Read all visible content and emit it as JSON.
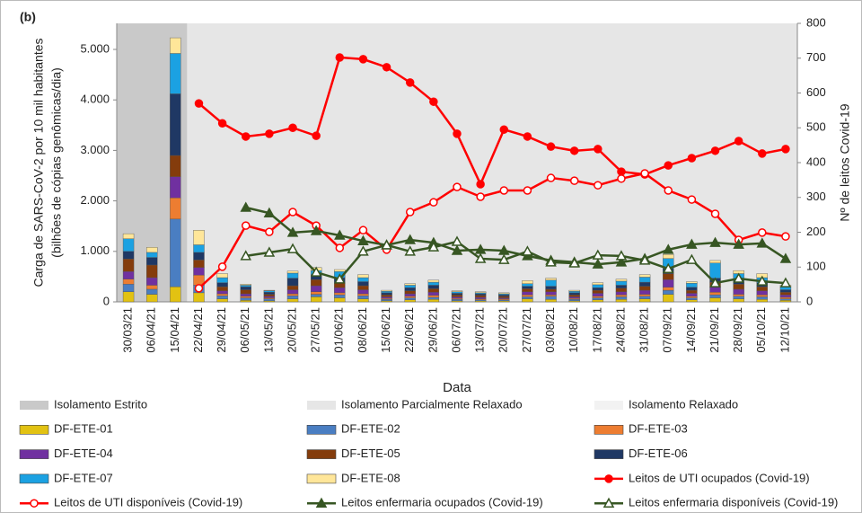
{
  "chart_data": {
    "type": "combo",
    "panel_label": "(b)",
    "y_label": [
      "Carga de SARS-CoV-2 por 10 mil habitantes",
      "(bilhões de cópias genômicas/dia)"
    ],
    "y2_label": "Nº de leitos Covid-19",
    "x_label": "Data",
    "categories": [
      "30/03/21",
      "06/04/21",
      "15/04/21",
      "22/04/21",
      "29/04/21",
      "06/05/21",
      "13/05/21",
      "20/05/21",
      "27/05/21",
      "01/06/21",
      "08/06/21",
      "15/06/21",
      "22/06/21",
      "29/06/21",
      "06/07/21",
      "13/07/21",
      "20/07/21",
      "27/07/21",
      "03/08/21",
      "10/08/21",
      "17/08/21",
      "24/08/21",
      "31/08/21",
      "07/09/21",
      "14/09/21",
      "21/09/21",
      "28/09/21",
      "05/10/21",
      "12/10/21"
    ],
    "ylim": [
      0,
      5516
    ],
    "yticks": [
      0,
      {
        "value": 1000,
        "label": "1.000"
      },
      {
        "value": 2000,
        "label": "2.000"
      },
      {
        "value": 3000,
        "label": "3.000"
      },
      {
        "value": 4000,
        "label": "4.000"
      },
      {
        "value": 5000,
        "label": "5.000"
      }
    ],
    "y2lim": [
      0,
      800
    ],
    "y2ticks": [
      0,
      100,
      200,
      300,
      400,
      500,
      600,
      700,
      800
    ],
    "periods": [
      {
        "name": "Isolamento Estrito",
        "color": "#c9c9c9",
        "from": "30/03/21",
        "to": "15/04/21"
      },
      {
        "name": "Isolamento Parcialmente Relaxado",
        "color": "#e6e6e6",
        "from": "22/04/21",
        "to": "12/10/21"
      },
      {
        "name": "Isolamento Relaxado",
        "color": "#f2f2f2"
      }
    ],
    "series": [
      {
        "name": "DF-ETE-01",
        "kind": "bar",
        "color": "#e2c212",
        "values": [
          200,
          150,
          300,
          180,
          60,
          30,
          20,
          60,
          100,
          80,
          60,
          20,
          40,
          50,
          20,
          20,
          20,
          60,
          50,
          20,
          40,
          50,
          60,
          150,
          40,
          80,
          60,
          50,
          30
        ]
      },
      {
        "name": "DF-ETE-02",
        "kind": "bar",
        "color": "#4a7ec2",
        "values": [
          150,
          100,
          1340,
          150,
          60,
          50,
          40,
          60,
          50,
          60,
          60,
          30,
          40,
          40,
          30,
          20,
          20,
          40,
          60,
          30,
          40,
          50,
          50,
          80,
          40,
          60,
          50,
          50,
          30
        ]
      },
      {
        "name": "DF-ETE-03",
        "kind": "bar",
        "color": "#ed7d31",
        "values": [
          100,
          80,
          420,
          200,
          40,
          30,
          20,
          40,
          50,
          40,
          40,
          20,
          30,
          40,
          20,
          20,
          20,
          40,
          30,
          20,
          30,
          40,
          40,
          60,
          30,
          50,
          40,
          40,
          30
        ]
      },
      {
        "name": "DF-ETE-04",
        "kind": "bar",
        "color": "#7030a0",
        "values": [
          150,
          150,
          420,
          150,
          60,
          50,
          30,
          80,
          120,
          100,
          80,
          30,
          50,
          60,
          30,
          30,
          20,
          60,
          60,
          30,
          60,
          60,
          80,
          150,
          60,
          100,
          100,
          80,
          50
        ]
      },
      {
        "name": "DF-ETE-05",
        "kind": "bar",
        "color": "#843c0c",
        "values": [
          250,
          250,
          420,
          150,
          80,
          80,
          40,
          80,
          120,
          100,
          80,
          40,
          60,
          70,
          40,
          40,
          30,
          60,
          50,
          40,
          60,
          70,
          80,
          120,
          60,
          100,
          100,
          80,
          50
        ]
      },
      {
        "name": "DF-ETE-06",
        "kind": "bar",
        "color": "#1f3864",
        "values": [
          150,
          150,
          1220,
          150,
          80,
          60,
          40,
          150,
          100,
          100,
          80,
          40,
          60,
          70,
          30,
          30,
          30,
          50,
          60,
          40,
          50,
          60,
          80,
          100,
          60,
          80,
          80,
          80,
          50
        ]
      },
      {
        "name": "DF-ETE-07",
        "kind": "bar",
        "color": "#1ba1e2",
        "values": [
          250,
          100,
          800,
          150,
          100,
          30,
          30,
          100,
          80,
          120,
          80,
          30,
          50,
          60,
          30,
          20,
          20,
          50,
          120,
          30,
          60,
          80,
          100,
          200,
          80,
          300,
          130,
          100,
          60
        ]
      },
      {
        "name": "DF-ETE-08",
        "kind": "bar",
        "color": "#ffe699",
        "values": [
          100,
          100,
          310,
          290,
          80,
          20,
          10,
          40,
          60,
          40,
          60,
          20,
          30,
          40,
          20,
          20,
          20,
          60,
          40,
          20,
          40,
          40,
          50,
          80,
          30,
          50,
          60,
          80,
          30
        ]
      },
      {
        "name": "Leitos de UTI ocupados (Covid-19)",
        "kind": "line",
        "axis": "y2",
        "marker": "circle",
        "filled": true,
        "color": "#ff0000",
        "values": [
          null,
          null,
          null,
          570,
          513,
          475,
          483,
          500,
          477,
          702,
          697,
          674,
          630,
          575,
          483,
          338,
          495,
          475,
          446,
          434,
          439,
          374,
          366,
          392,
          413,
          434,
          462,
          426,
          439
        ]
      },
      {
        "name": "Leitos de UTI disponíveis (Covid-19)",
        "kind": "line",
        "axis": "y2",
        "marker": "circle",
        "filled": false,
        "color": "#ff0000",
        "values": [
          null,
          null,
          null,
          39,
          101,
          219,
          201,
          258,
          219,
          155,
          206,
          150,
          258,
          286,
          330,
          302,
          320,
          320,
          356,
          348,
          335,
          354,
          369,
          320,
          294,
          253,
          178,
          199,
          188
        ]
      },
      {
        "name": "Leitos enfermaria ocupados (Covid-19)",
        "kind": "line",
        "axis": "y2",
        "marker": "triangle",
        "filled": true,
        "color": "#375623",
        "values": [
          null,
          null,
          null,
          null,
          null,
          271,
          255,
          199,
          204,
          191,
          175,
          163,
          178,
          170,
          147,
          150,
          147,
          132,
          119,
          114,
          108,
          114,
          124,
          150,
          165,
          170,
          165,
          168,
          124
        ]
      },
      {
        "name": "Leitos enfermaria disponíveis (Covid-19)",
        "kind": "line",
        "axis": "y2",
        "marker": "triangle",
        "filled": false,
        "color": "#375623",
        "values": [
          null,
          null,
          null,
          null,
          null,
          132,
          142,
          152,
          85,
          65,
          145,
          163,
          145,
          157,
          173,
          124,
          121,
          145,
          114,
          111,
          134,
          132,
          119,
          95,
          121,
          54,
          67,
          59,
          54
        ]
      }
    ]
  }
}
